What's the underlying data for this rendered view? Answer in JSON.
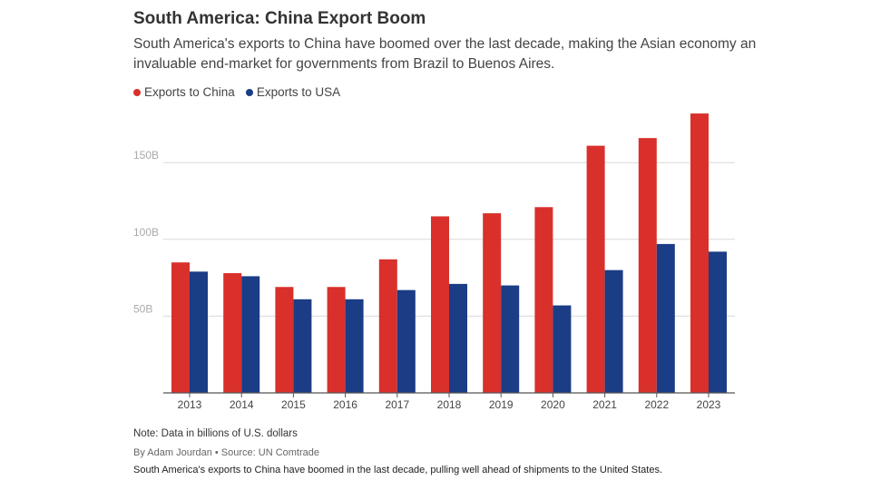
{
  "title": "South America: China Export Boom",
  "subtitle": "South America's exports to China have boomed over the last decade, making the Asian economy an invaluable end-market for governments from Brazil to Buenos Aires.",
  "note": "Note: Data in billions of U.S. dollars",
  "byline": "By Adam Jourdan • Source: UN Comtrade",
  "caption": "South America's exports to China have boomed in the last decade, pulling well ahead of shipments to the United States.",
  "colors": {
    "china": "#d9302b",
    "usa": "#1a3d85",
    "grid": "#d9d9d9",
    "axis": "#555555",
    "tick_text": "#aaaaaa"
  },
  "chart_data": {
    "type": "bar",
    "categories": [
      "2013",
      "2014",
      "2015",
      "2016",
      "2017",
      "2018",
      "2019",
      "2020",
      "2021",
      "2022",
      "2023"
    ],
    "series": [
      {
        "name": "Exports to China",
        "values": [
          85,
          78,
          69,
          69,
          87,
          115,
          117,
          121,
          161,
          166,
          182
        ]
      },
      {
        "name": "Exports to USA",
        "values": [
          79,
          76,
          61,
          61,
          67,
          71,
          70,
          57,
          80,
          97,
          92
        ]
      }
    ],
    "y_ticks": [
      {
        "value": 50,
        "label": "50B"
      },
      {
        "value": 100,
        "label": "100B"
      },
      {
        "value": 150,
        "label": "150B"
      }
    ],
    "ylim": [
      0,
      185
    ],
    "grid": true,
    "legend_position": "top-left"
  }
}
